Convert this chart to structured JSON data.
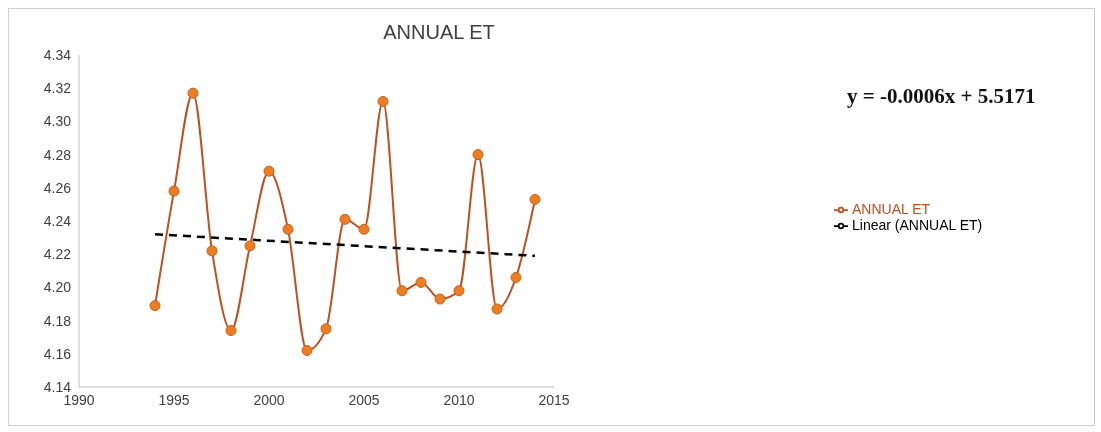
{
  "chart_data": {
    "type": "line",
    "title": "ANNUAL ET",
    "x": [
      1994,
      1995,
      1996,
      1997,
      1998,
      1999,
      2000,
      2001,
      2002,
      2003,
      2004,
      2005,
      2006,
      2007,
      2008,
      2009,
      2010,
      2011,
      2012,
      2013,
      2014
    ],
    "series": [
      {
        "name": "ANNUAL ET",
        "color": "#c0501f",
        "marker": "circle",
        "line_style": "solid",
        "values": [
          4.189,
          4.258,
          4.317,
          4.222,
          4.174,
          4.225,
          4.27,
          4.235,
          4.162,
          4.175,
          4.241,
          4.235,
          4.312,
          4.198,
          4.203,
          4.193,
          4.198,
          4.28,
          4.187,
          4.206,
          4.253
        ]
      },
      {
        "name": "Linear (ANNUAL ET)",
        "type": "line",
        "color": "#000000",
        "marker": "none",
        "line_style": "dashed",
        "x": [
          1994,
          2014
        ],
        "values": [
          4.232,
          4.219
        ]
      }
    ],
    "xlim": [
      1990,
      2015
    ],
    "xticks": [
      1990,
      1995,
      2000,
      2005,
      2010,
      2015
    ],
    "ylim": [
      4.14,
      4.34
    ],
    "yticks": [
      4.14,
      4.16,
      4.18,
      {
        "value": 4.2,
        "label": "4.20"
      },
      4.22,
      4.24,
      4.26,
      4.28,
      {
        "value": 4.3,
        "label": "4.30"
      },
      4.32,
      4.34
    ],
    "legend": "right",
    "annotations": [
      "y = -0.0006x + 5.5171"
    ]
  }
}
